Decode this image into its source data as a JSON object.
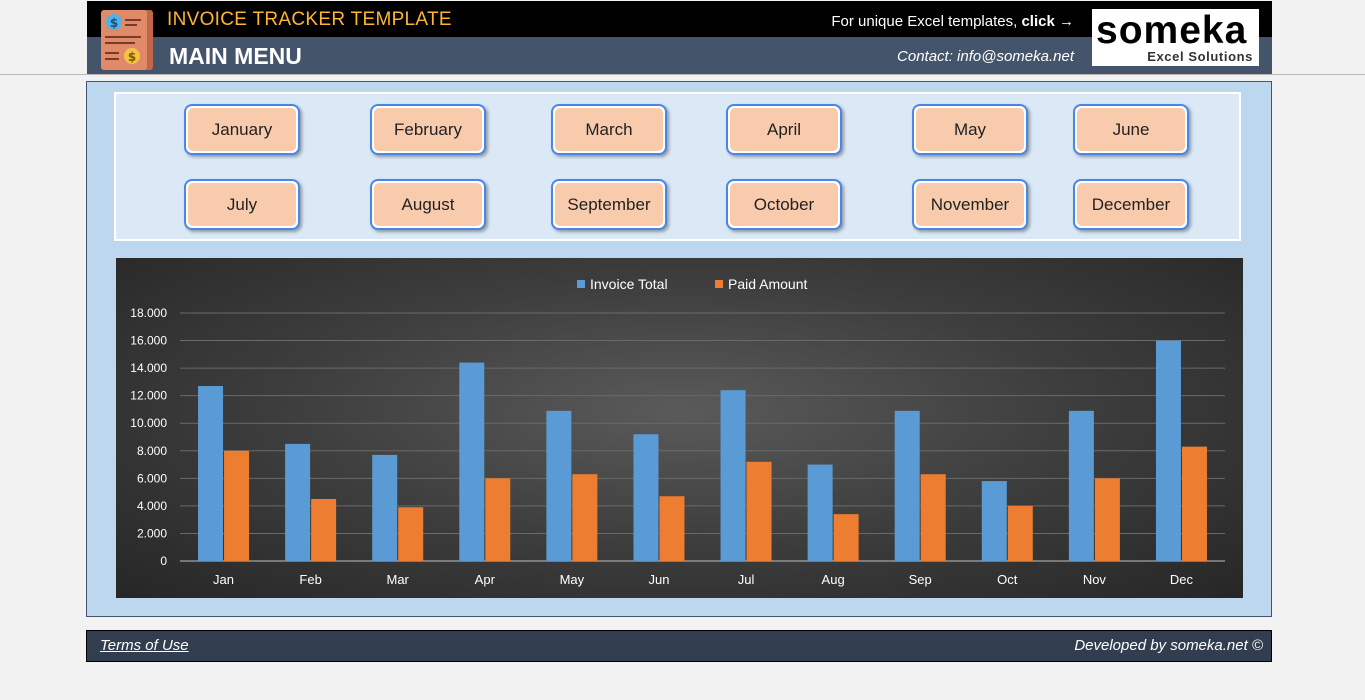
{
  "header": {
    "template_title": "INVOICE TRACKER TEMPLATE",
    "page_title": "MAIN MENU",
    "promo_text": "For unique Excel templates,",
    "promo_link": "click",
    "contact": "Contact: info@someka.net",
    "brand_name": "someka",
    "brand_sub": "Excel Solutions"
  },
  "months": [
    "January",
    "February",
    "March",
    "April",
    "May",
    "June",
    "July",
    "August",
    "September",
    "October",
    "November",
    "December"
  ],
  "footer": {
    "terms": "Terms of Use",
    "developer": "Developed by someka.net ©"
  },
  "chart_data": {
    "type": "bar",
    "categories": [
      "Jan",
      "Feb",
      "Mar",
      "Apr",
      "May",
      "Jun",
      "Jul",
      "Aug",
      "Sep",
      "Oct",
      "Nov",
      "Dec"
    ],
    "series": [
      {
        "name": "Invoice Total",
        "color": "#5b9bd5",
        "values": [
          12700,
          8500,
          7700,
          14400,
          10900,
          9200,
          12400,
          7000,
          10900,
          5800,
          10900,
          16000
        ]
      },
      {
        "name": "Paid Amount",
        "color": "#ed7d31",
        "values": [
          8000,
          4500,
          3900,
          6000,
          6300,
          4700,
          7200,
          3400,
          6300,
          4000,
          6000,
          8300
        ]
      }
    ],
    "yticks": [
      "0",
      "2.000",
      "4.000",
      "6.000",
      "8.000",
      "10.000",
      "12.000",
      "14.000",
      "16.000",
      "18.000"
    ],
    "ylim": [
      0,
      18000
    ],
    "legend_position": "top",
    "grid": true
  }
}
